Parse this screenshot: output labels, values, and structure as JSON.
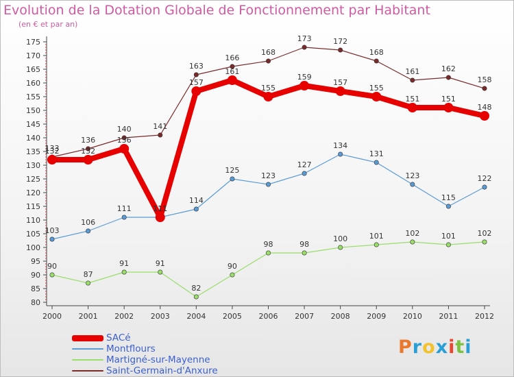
{
  "title": "Evolution de la Dotation Globale de Fonctionnement par Habitant",
  "subtitle": "(en € et par an)",
  "logo": {
    "text": "Proxiti",
    "letter_colors": [
      "#e8792e",
      "#2a9fd6",
      "#f2c12e",
      "#2a9fd6",
      "#e8462e",
      "#7cc242",
      "#2a9fd6"
    ]
  },
  "chart_data": {
    "type": "line",
    "x": [
      "2000",
      "2001",
      "2002",
      "2003",
      "2004",
      "2005",
      "2006",
      "2007",
      "2008",
      "2009",
      "2010",
      "2011",
      "2012"
    ],
    "ylim": [
      80,
      175
    ],
    "yticks": [
      80,
      85,
      90,
      95,
      100,
      105,
      110,
      115,
      120,
      125,
      130,
      135,
      140,
      145,
      150,
      155,
      160,
      165,
      170,
      175
    ],
    "grid": false,
    "legend_position": "bottom-left",
    "series": [
      {
        "name": "SACé",
        "color": "#e60000",
        "values": [
          132,
          132,
          136,
          111,
          157,
          161,
          155,
          159,
          157,
          155,
          151,
          151,
          148
        ]
      },
      {
        "name": "Montflours",
        "color": "#5a9ad5",
        "values": [
          103,
          106,
          111,
          111,
          114,
          125,
          123,
          127,
          134,
          131,
          123,
          115,
          122
        ]
      },
      {
        "name": "Martigné-sur-Mayenne",
        "color": "#99dd6a",
        "values": [
          90,
          87,
          91,
          91,
          82,
          90,
          98,
          98,
          100,
          101,
          102,
          101,
          102
        ]
      },
      {
        "name": "Saint-Germain-d'Anxure",
        "color": "#7a2a2a",
        "values": [
          133,
          136,
          140,
          141,
          163,
          166,
          168,
          173,
          172,
          168,
          161,
          162,
          158
        ]
      }
    ]
  }
}
